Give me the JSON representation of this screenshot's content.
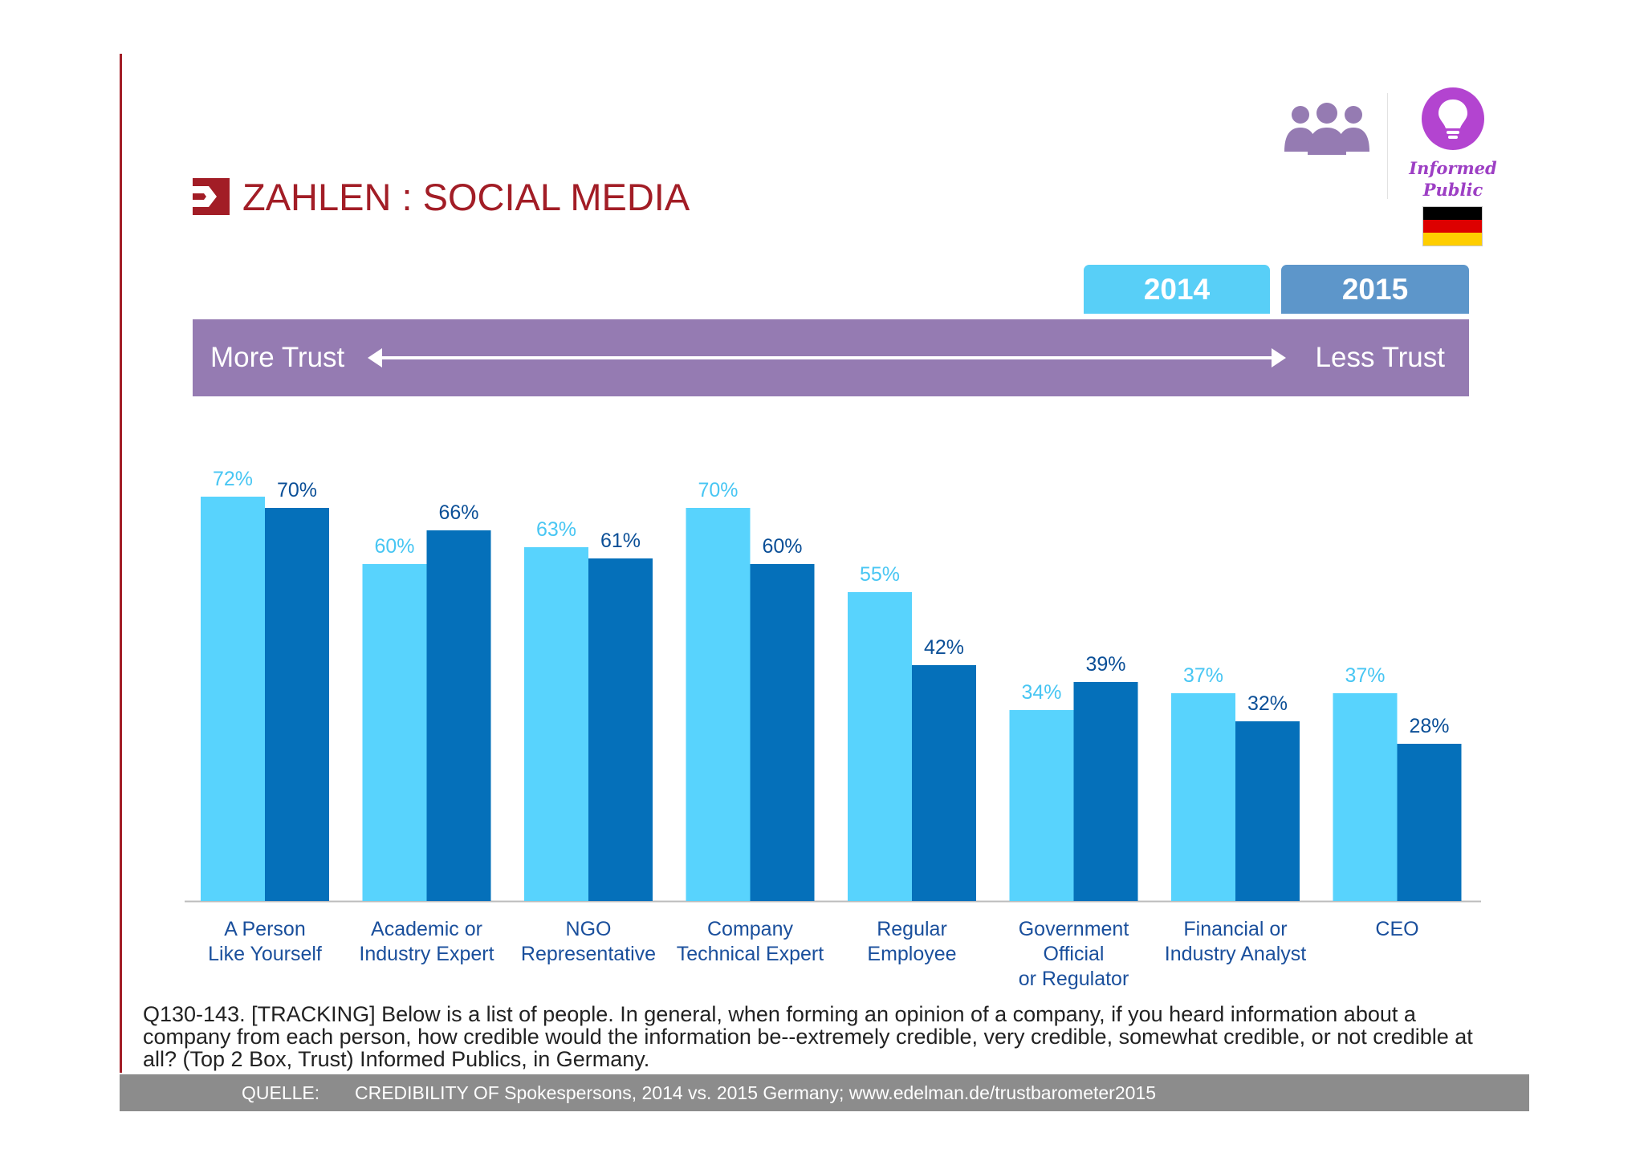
{
  "header": {
    "title": "ZAHLEN : SOCIAL MEDIA",
    "audience_label_line1": "Informed",
    "audience_label_line2": "Public"
  },
  "icons": {
    "logo": "arrow-bracket-logo-icon",
    "audience": "people-group-icon",
    "informed": "lightbulb-icon",
    "country": "germany-flag-icon"
  },
  "year_tabs": [
    "2014",
    "2015"
  ],
  "trust_band": {
    "left_label": "More Trust",
    "right_label": "Less Trust"
  },
  "colors": {
    "brand_red": "#a21d26",
    "series_2014": "#58d3fd",
    "series_2015": "#0570ba",
    "band_purple": "#957bb2",
    "tab_2014": "#58cff7",
    "tab_2015": "#5d96ca",
    "informed_purple": "#b344d0"
  },
  "chart_data": {
    "type": "bar",
    "categories": [
      [
        "A Person",
        "Like Yourself"
      ],
      [
        "Academic or",
        "Industry Expert"
      ],
      [
        "NGO",
        "Representative"
      ],
      [
        "Company",
        "Technical Expert"
      ],
      [
        "Regular",
        "Employee"
      ],
      [
        "Government",
        "Official",
        "or Regulator"
      ],
      [
        "Financial or",
        "Industry Analyst"
      ],
      [
        "CEO"
      ]
    ],
    "series": [
      {
        "name": "2014",
        "values": [
          72,
          60,
          63,
          70,
          55,
          34,
          37,
          37
        ],
        "labels": [
          "72%",
          "60%",
          "63%",
          "70%",
          "55%",
          "34%",
          "37%",
          "37%"
        ]
      },
      {
        "name": "2015",
        "values": [
          70,
          66,
          61,
          60,
          42,
          39,
          32,
          28
        ],
        "labels": [
          "70%",
          "66%",
          "61%",
          "60%",
          "42%",
          "39%",
          "32%",
          "28%"
        ]
      }
    ],
    "ylim": [
      0,
      100
    ],
    "grid": false,
    "legend": "top-right"
  },
  "footer": {
    "question": "Q130-143. [TRACKING] Below is a list of people. In general, when forming an opinion of a company, if you heard information about a company from each person, how credible would the information be--extremely credible, very credible, somewhat credible, or not credible at all? (Top 2 Box, Trust) Informed Publics, in Germany.",
    "source_label": "QUELLE:",
    "source_text": "CREDIBILITY OF Spokespersons, 2014 vs. 2015 Germany; www.edelman.de/trustbarometer2015"
  }
}
